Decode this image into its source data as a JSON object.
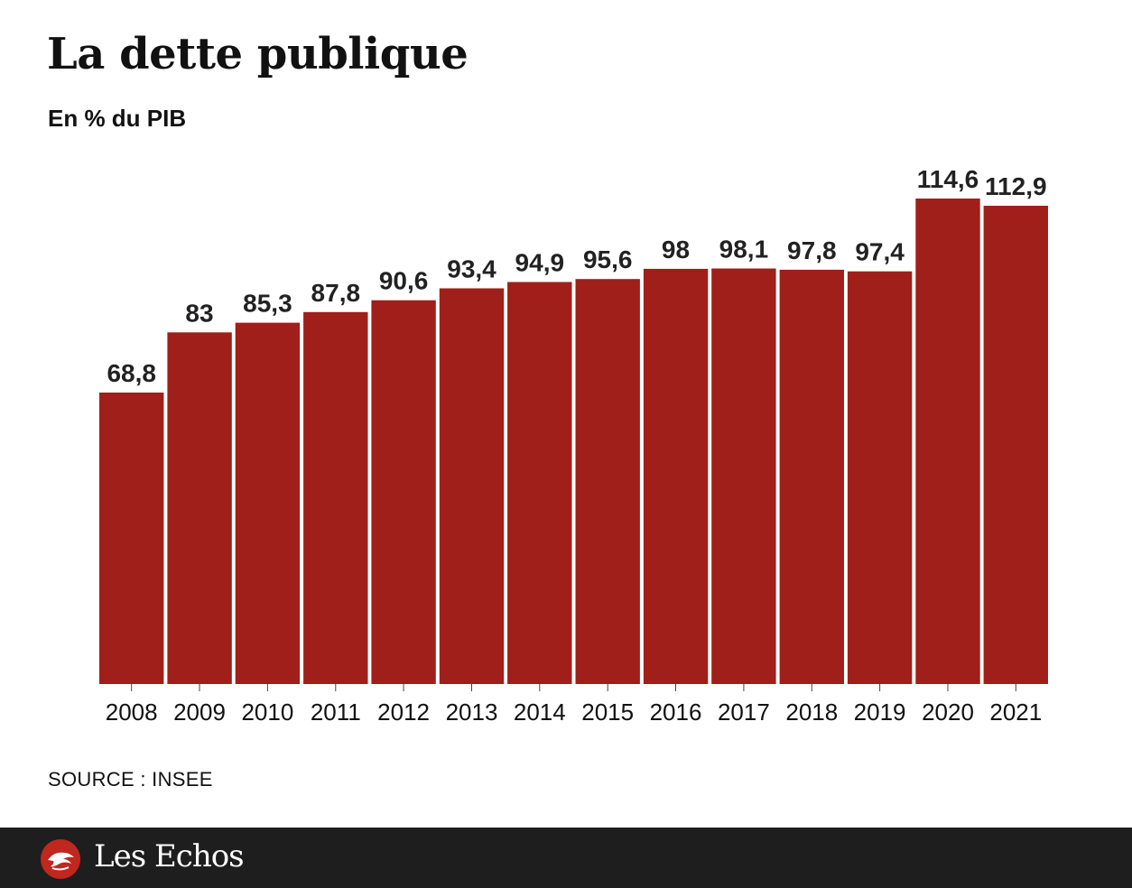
{
  "chart_data": {
    "type": "bar",
    "title": "La dette publique",
    "subtitle": "En % du PIB",
    "categories": [
      "2008",
      "2009",
      "2010",
      "2011",
      "2012",
      "2013",
      "2014",
      "2015",
      "2016",
      "2017",
      "2018",
      "2019",
      "2020",
      "2021"
    ],
    "values": [
      68.8,
      83,
      85.3,
      87.8,
      90.6,
      93.4,
      94.9,
      95.6,
      98,
      98.1,
      97.8,
      97.4,
      114.6,
      112.9
    ],
    "value_labels": [
      "68,8",
      "83",
      "85,3",
      "87,8",
      "90,6",
      "93,4",
      "94,9",
      "95,6",
      "98",
      "98,1",
      "97,8",
      "97,4",
      "114,6",
      "112,9"
    ],
    "xlabel": "",
    "ylabel": "",
    "ylim": [
      0,
      114.6
    ],
    "grid": false,
    "legend": "none",
    "bar_color": "#a01f1a"
  },
  "source": "SOURCE : INSEE",
  "footer": {
    "brand": "Les Echos",
    "logo_icon": "les-echos-eagle-icon"
  },
  "colors": {
    "footer_bg": "#1e1e1e",
    "bar": "#a01f1a"
  }
}
